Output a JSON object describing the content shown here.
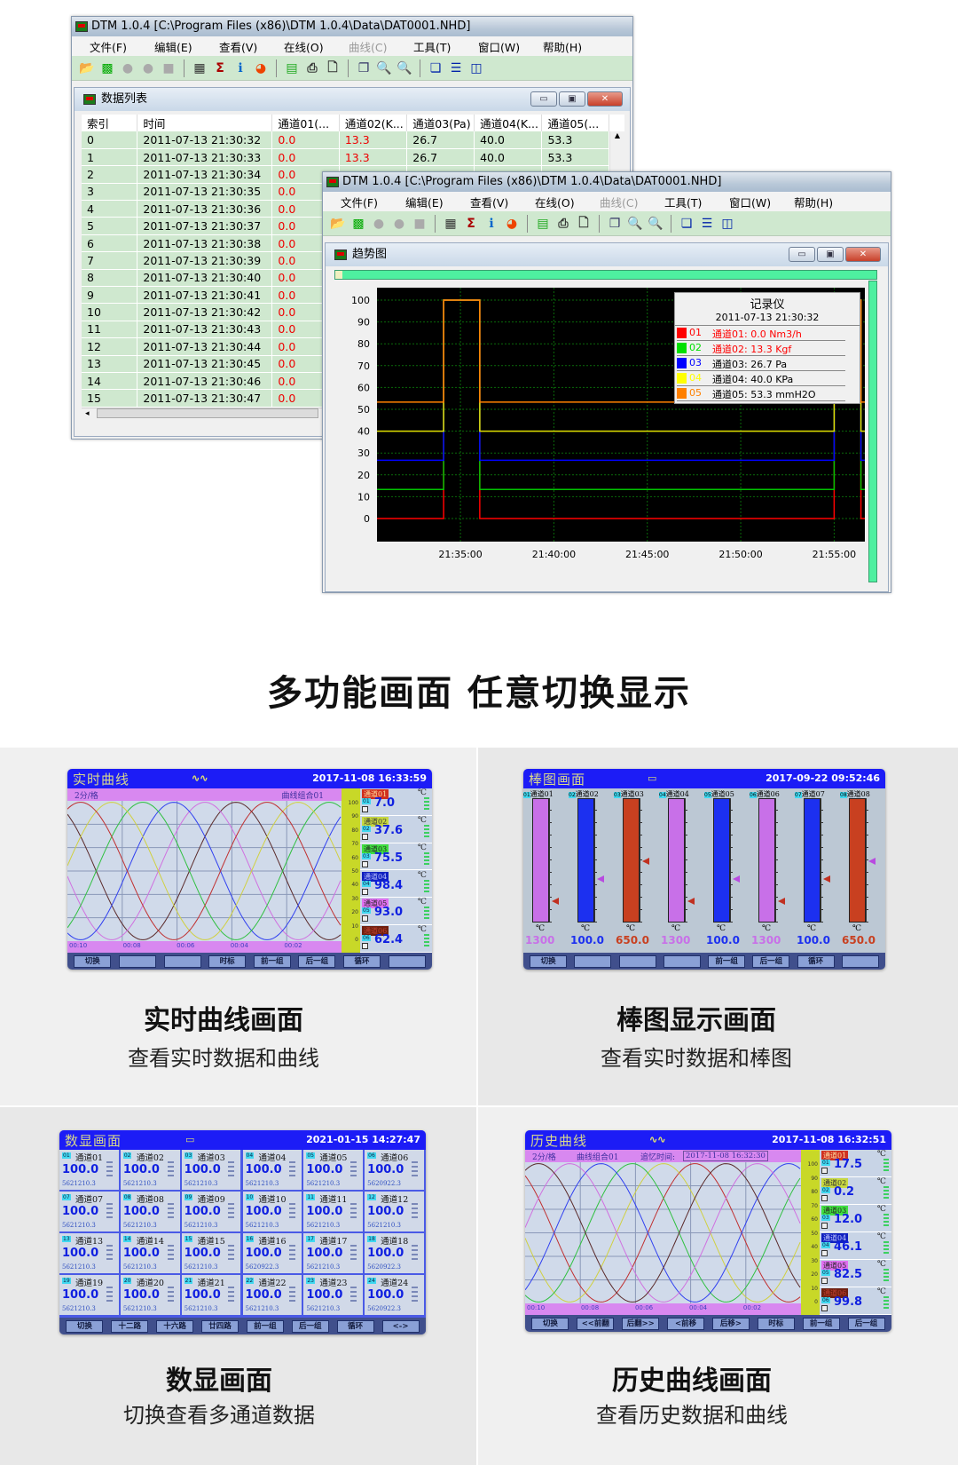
{
  "window_list": {
    "title": "DTM 1.0.4 [C:\\Program Files (x86)\\DTM 1.0.4\\Data\\DAT0001.NHD]",
    "menu": [
      "文件(F)",
      "编辑(E)",
      "查看(V)",
      "在线(O)",
      "曲线(C)",
      "工具(T)",
      "窗口(W)",
      "帮助(H)"
    ],
    "menu_disabled": [
      "曲线(C)"
    ],
    "toolbar_icons": [
      "open-folder-icon",
      "trend-icon",
      "stop-circle-icon",
      "stop-circle-icon",
      "stop-square-icon",
      "table-icon",
      "sigma-icon",
      "info-icon",
      "chart-pie-icon",
      "excel-export-icon",
      "print-icon",
      "print-preview-icon",
      "copy-icon",
      "zoom-icon",
      "zoom-disabled-icon",
      "cascade-icon",
      "tile-horizontal-icon",
      "tile-vertical-icon"
    ],
    "child_title": "数据列表",
    "columns": [
      "索引",
      "时间",
      "通道01(...",
      "通道02(K...",
      "通道03(Pa)",
      "通道04(K...",
      "通道05(..."
    ],
    "rows": [
      [
        "0",
        "2011-07-13 21:30:32",
        "0.0",
        "13.3",
        "26.7",
        "40.0",
        "53.3"
      ],
      [
        "1",
        "2011-07-13 21:30:33",
        "0.0",
        "13.3",
        "26.7",
        "40.0",
        "53.3"
      ],
      [
        "2",
        "2011-07-13 21:30:34",
        "0.0"
      ],
      [
        "3",
        "2011-07-13 21:30:35",
        "0.0"
      ],
      [
        "4",
        "2011-07-13 21:30:36",
        "0.0"
      ],
      [
        "5",
        "2011-07-13 21:30:37",
        "0.0"
      ],
      [
        "6",
        "2011-07-13 21:30:38",
        "0.0"
      ],
      [
        "7",
        "2011-07-13 21:30:39",
        "0.0"
      ],
      [
        "8",
        "2011-07-13 21:30:40",
        "0.0"
      ],
      [
        "9",
        "2011-07-13 21:30:41",
        "0.0"
      ],
      [
        "10",
        "2011-07-13 21:30:42",
        "0.0"
      ],
      [
        "11",
        "2011-07-13 21:30:43",
        "0.0"
      ],
      [
        "12",
        "2011-07-13 21:30:44",
        "0.0"
      ],
      [
        "13",
        "2011-07-13 21:30:45",
        "0.0"
      ],
      [
        "14",
        "2011-07-13 21:30:46",
        "0.0"
      ],
      [
        "15",
        "2011-07-13 21:30:47",
        "0.0"
      ]
    ]
  },
  "window_trend": {
    "title": "DTM 1.0.4 [C:\\Program Files (x86)\\DTM 1.0.4\\Data\\DAT0001.NHD]",
    "menu": [
      "文件(F)",
      "编辑(E)",
      "查看(V)",
      "在线(O)",
      "曲线(C)",
      "工具(T)",
      "窗口(W)",
      "帮助(H)"
    ],
    "child_title": "趋势图",
    "legend": {
      "title": "记录仪",
      "time": "2011-07-13 21:30:32",
      "items": [
        {
          "num": "01",
          "label": "通道01: 0.0 Nm3/h",
          "color": "#ff0000",
          "text_color": "#ff0000"
        },
        {
          "num": "02",
          "label": "通道02: 13.3 Kgf",
          "color": "#00e000",
          "text_color": "#ff0000"
        },
        {
          "num": "03",
          "label": "通道03: 26.7 Pa",
          "color": "#0000ff",
          "text_color": "#000000"
        },
        {
          "num": "04",
          "label": "通道04: 40.0 KPa",
          "color": "#ffff00",
          "text_color": "#000000"
        },
        {
          "num": "05",
          "label": "通道05: 53.3 mmH2O",
          "color": "#ff8000",
          "text_color": "#000000"
        }
      ]
    }
  },
  "chart_data": {
    "type": "line",
    "step": true,
    "background": "#000000",
    "grid": true,
    "ylim": [
      0,
      100
    ],
    "yticks": [
      "0",
      "10",
      "20",
      "30",
      "40",
      "50",
      "60",
      "70",
      "80",
      "90",
      "100"
    ],
    "xlim": [
      "21:30:32",
      "21:56:50"
    ],
    "xticks": [
      "21:35:00",
      "21:40:00",
      "21:45:00",
      "21:50:00",
      "21:55:00"
    ],
    "x": [
      "21:30:32",
      "21:34:06",
      "21:36:02",
      "21:55:00",
      "21:56:26",
      "21:56:50"
    ],
    "legend_position": "top-right",
    "series": [
      {
        "name": "通道01",
        "color": "#ff0000",
        "values": [
          0,
          100,
          0,
          100,
          0,
          0
        ]
      },
      {
        "name": "通道02",
        "color": "#00c000",
        "values": [
          13.3,
          100,
          13.3,
          100,
          13.3,
          13.3
        ]
      },
      {
        "name": "通道03",
        "color": "#0000ff",
        "values": [
          26.7,
          100,
          26.7,
          100,
          26.7,
          26.7
        ]
      },
      {
        "name": "通道04",
        "color": "#e0e000",
        "values": [
          40,
          100,
          40,
          100,
          40,
          40
        ]
      },
      {
        "name": "通道05",
        "color": "#ff8000",
        "values": [
          53.3,
          100,
          53.3,
          100,
          53.3,
          53.3
        ]
      }
    ]
  },
  "heading": "多功能画面  任意切换显示",
  "realtime": {
    "title": "实时曲线",
    "icon": "wave-icon",
    "time": "2017-11-08 16:33:59",
    "scale_label": "2分/格",
    "group": "曲线组合01",
    "time_labels": [
      "00:10",
      "00:08",
      "00:06",
      "00:04",
      "00:02"
    ],
    "scale_ticks": [
      "100",
      "90",
      "80",
      "70",
      "60",
      "50",
      "40",
      "30",
      "20",
      "10",
      "0"
    ],
    "curve_colors": [
      "#5a2a2a",
      "#d070e0",
      "#3040f0",
      "#30c040",
      "#d0d040",
      "#c03030"
    ],
    "channels": [
      {
        "label": "通道01",
        "num": "01",
        "value": "7.0",
        "unit": "℃",
        "bg": "#d03020",
        "fg": "#ffe0a0"
      },
      {
        "label": "通道02",
        "num": "02",
        "value": "37.6",
        "unit": "℃",
        "bg": "#c8d840",
        "fg": "#333"
      },
      {
        "label": "通道03",
        "num": "03",
        "value": "75.5",
        "unit": "℃",
        "bg": "#40e040",
        "fg": "#222"
      },
      {
        "label": "通道04",
        "num": "04",
        "value": "98.4",
        "unit": "℃",
        "bg": "#1020c0",
        "fg": "#c0c8ff"
      },
      {
        "label": "通道05",
        "num": "05",
        "value": "93.0",
        "unit": "℃",
        "bg": "#e070f0",
        "fg": "#222"
      },
      {
        "label": "通道06",
        "num": "06",
        "value": "62.4",
        "unit": "℃",
        "bg": "#702010",
        "fg": "#c04030"
      }
    ],
    "buttons": [
      "切换",
      "",
      "",
      "时标",
      "前一组",
      "后一组",
      "循环",
      ""
    ],
    "caption": "实时曲线画面",
    "subcaption": "查看实时数据和曲线"
  },
  "bars": {
    "title": "棒图画面",
    "icon": "bar-icon",
    "time": "2017-09-22 09:52:46",
    "channels": [
      {
        "num": "01",
        "label": "通道01",
        "value": "1300",
        "unit": "℃",
        "color": "#c870e8",
        "level": 1.0
      },
      {
        "num": "02",
        "label": "通道02",
        "value": "100.0",
        "unit": "℃",
        "color": "#1c30f0",
        "level": 1.0
      },
      {
        "num": "03",
        "label": "通道03",
        "value": "650.0",
        "unit": "℃",
        "color": "#c84020",
        "level": 1.0
      },
      {
        "num": "04",
        "label": "通道04",
        "value": "1300",
        "unit": "℃",
        "color": "#c870e8",
        "level": 1.0
      },
      {
        "num": "05",
        "label": "通道05",
        "value": "100.0",
        "unit": "℃",
        "color": "#1c30f0",
        "level": 1.0
      },
      {
        "num": "06",
        "label": "通道06",
        "value": "1300",
        "unit": "℃",
        "color": "#c870e8",
        "level": 1.0
      },
      {
        "num": "07",
        "label": "通道07",
        "value": "100.0",
        "unit": "℃",
        "color": "#1c30f0",
        "level": 1.0
      },
      {
        "num": "08",
        "label": "通道08",
        "value": "650.0",
        "unit": "℃",
        "color": "#c84020",
        "level": 1.0
      }
    ],
    "buttons": [
      "切换",
      "",
      "",
      "",
      "前一组",
      "后一组",
      "循环",
      ""
    ],
    "caption": "棒图显示画面",
    "subcaption": "查看实时数据和棒图"
  },
  "digital": {
    "title": "数显画面",
    "icon": "bar-icon",
    "time": "2021-01-15 14:27:47",
    "cells": [
      {
        "num": "01",
        "label": "通道01",
        "value": "100.0",
        "sub": "5621210.3"
      },
      {
        "num": "02",
        "label": "通道02",
        "value": "100.0",
        "sub": "5621210.3"
      },
      {
        "num": "03",
        "label": "通道03",
        "value": "100.0",
        "sub": "5621210.3"
      },
      {
        "num": "04",
        "label": "通道04",
        "value": "100.0",
        "sub": "5621210.3"
      },
      {
        "num": "05",
        "label": "通道05",
        "value": "100.0",
        "sub": "5621210.3"
      },
      {
        "num": "06",
        "label": "通道06",
        "value": "100.0",
        "sub": "5620922.3"
      },
      {
        "num": "07",
        "label": "通道07",
        "value": "100.0",
        "sub": "5621210.3"
      },
      {
        "num": "08",
        "label": "通道08",
        "value": "100.0",
        "sub": "5621210.3"
      },
      {
        "num": "09",
        "label": "通道09",
        "value": "100.0",
        "sub": "5621210.3"
      },
      {
        "num": "10",
        "label": "通道10",
        "value": "100.0",
        "sub": "5621210.3"
      },
      {
        "num": "11",
        "label": "通道11",
        "value": "100.0",
        "sub": "5621210.3"
      },
      {
        "num": "12",
        "label": "通道12",
        "value": "100.0",
        "sub": "5621210.3"
      },
      {
        "num": "13",
        "label": "通道13",
        "value": "100.0",
        "sub": "5621210.3"
      },
      {
        "num": "14",
        "label": "通道14",
        "value": "100.0",
        "sub": "5621210.3"
      },
      {
        "num": "15",
        "label": "通道15",
        "value": "100.0",
        "sub": "5621210.3"
      },
      {
        "num": "16",
        "label": "通道16",
        "value": "100.0",
        "sub": "5620922.3"
      },
      {
        "num": "17",
        "label": "通道17",
        "value": "100.0",
        "sub": "5621210.3"
      },
      {
        "num": "18",
        "label": "通道18",
        "value": "100.0",
        "sub": "5620922.3"
      },
      {
        "num": "19",
        "label": "通道19",
        "value": "100.0",
        "sub": "5621210.3"
      },
      {
        "num": "20",
        "label": "通道20",
        "value": "100.0",
        "sub": "5621210.3"
      },
      {
        "num": "21",
        "label": "通道21",
        "value": "100.0",
        "sub": "5621210.3"
      },
      {
        "num": "22",
        "label": "通道22",
        "value": "100.0",
        "sub": "5621210.3"
      },
      {
        "num": "23",
        "label": "通道23",
        "value": "100.0",
        "sub": "5621210.3"
      },
      {
        "num": "24",
        "label": "通道24",
        "value": "100.0",
        "sub": "5620922.3"
      }
    ],
    "buttons": [
      "切换",
      "十二路",
      "十六路",
      "廿四路",
      "前一组",
      "后一组",
      "循环",
      "<->"
    ],
    "caption": "数显画面",
    "subcaption": "切换查看多通道数据"
  },
  "history": {
    "title": "历史曲线",
    "icon": "wave-icon",
    "time": "2017-11-08 16:32:51",
    "scale_label": "2分/格",
    "group": "曲线组合01",
    "recall_label": "追忆时间:",
    "recall_time": "2017-11-08  16:32:30",
    "time_labels": [
      "00:10",
      "00:08",
      "00:06",
      "00:04",
      "00:02"
    ],
    "scale_ticks": [
      "100",
      "90",
      "80",
      "70",
      "60",
      "50",
      "40",
      "30",
      "20",
      "10",
      "0"
    ],
    "curve_colors": [
      "#c03030",
      "#d0d040",
      "#30c040",
      "#3040f0",
      "#d070e0",
      "#5a2a2a"
    ],
    "channels": [
      {
        "label": "通道01",
        "num": "01",
        "value": "17.5",
        "unit": "℃",
        "bg": "#d03020",
        "fg": "#ffe0a0"
      },
      {
        "label": "通道02",
        "num": "02",
        "value": "0.2",
        "unit": "℃",
        "bg": "#c8d840",
        "fg": "#333"
      },
      {
        "label": "通道03",
        "num": "03",
        "value": "12.0",
        "unit": "℃",
        "bg": "#40e040",
        "fg": "#222"
      },
      {
        "label": "通道04",
        "num": "04",
        "value": "46.1",
        "unit": "℃",
        "bg": "#1020c0",
        "fg": "#c0c8ff"
      },
      {
        "label": "通道05",
        "num": "05",
        "value": "82.5",
        "unit": "℃",
        "bg": "#e070f0",
        "fg": "#222"
      },
      {
        "label": "通道06",
        "num": "06",
        "value": "99.8",
        "unit": "℃",
        "bg": "#702010",
        "fg": "#c04030"
      }
    ],
    "buttons": [
      "切换",
      "<<前翻",
      "后翻>>",
      "<前移",
      "后移>",
      "时标",
      "前一组",
      "后一组"
    ],
    "caption": "历史曲线画面",
    "subcaption": "查看历史数据和曲线"
  }
}
